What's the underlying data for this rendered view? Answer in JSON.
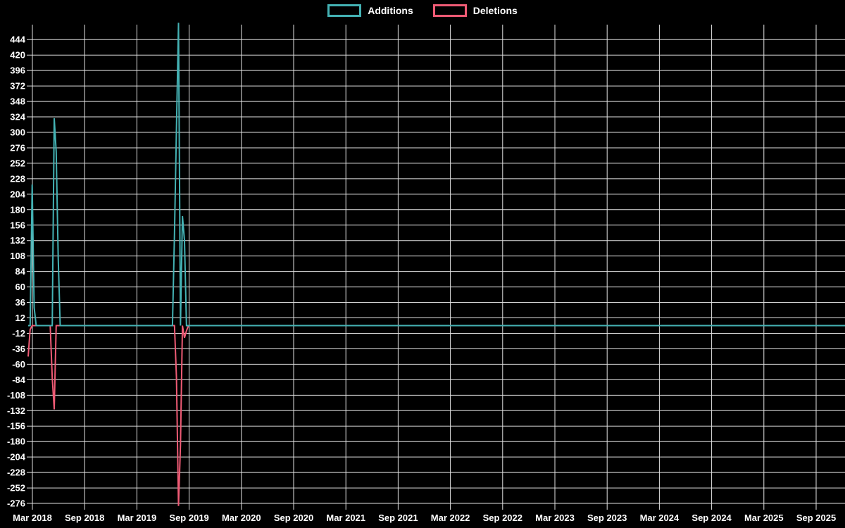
{
  "chart_data": {
    "type": "line",
    "title": "",
    "grid": true,
    "background_color": "#000000",
    "gridline_color": "#e2e2e2",
    "label_color": "#ffffff",
    "legend_position": "top-center",
    "x_axis": {
      "labels": [
        "Mar 2018",
        "Sep 2018",
        "Mar 2019",
        "Sep 2019",
        "Mar 2020",
        "Sep 2020",
        "Mar 2021",
        "Sep 2021",
        "Mar 2022",
        "Sep 2022",
        "Mar 2023",
        "Sep 2023",
        "Mar 2024",
        "Sep 2024",
        "Mar 2025",
        "Sep 2025"
      ],
      "tick_interval": "6 months",
      "range_start": "Mar 2018",
      "range_end": "Sep 2025"
    },
    "y_axis": {
      "min": -276,
      "max": 444,
      "step": 24,
      "ticks": [
        444,
        420,
        396,
        372,
        348,
        324,
        300,
        276,
        252,
        228,
        204,
        180,
        156,
        132,
        108,
        84,
        60,
        36,
        12,
        -12,
        -36,
        -60,
        -84,
        -108,
        -132,
        -156,
        -180,
        -204,
        -228,
        -252,
        -276
      ]
    },
    "x_unit": "week index from chart start (chart starts ~Mar 2018; ~26 weeks per 6-month tick)",
    "series": [
      {
        "name": "Additions",
        "color": "#44b2b4",
        "points": [
          [
            0,
            0
          ],
          [
            1,
            0
          ],
          [
            2,
            219
          ],
          [
            3,
            28
          ],
          [
            4,
            0
          ],
          [
            12,
            0
          ],
          [
            13,
            322
          ],
          [
            14,
            270
          ],
          [
            15,
            104
          ],
          [
            16,
            0
          ],
          [
            72,
            0
          ],
          [
            73,
            143
          ],
          [
            74,
            307
          ],
          [
            75,
            470
          ],
          [
            76,
            0
          ],
          [
            77,
            170
          ],
          [
            78,
            132
          ],
          [
            79,
            0
          ],
          [
            408,
            0
          ]
        ]
      },
      {
        "name": "Deletions",
        "color": "#ef5b75",
        "points": [
          [
            0,
            -48
          ],
          [
            1,
            -6
          ],
          [
            2,
            0
          ],
          [
            11,
            0
          ],
          [
            12,
            -81
          ],
          [
            13,
            -130
          ],
          [
            14,
            0
          ],
          [
            73,
            0
          ],
          [
            74,
            -81
          ],
          [
            75,
            -280
          ],
          [
            76,
            -185
          ],
          [
            77,
            0
          ],
          [
            78,
            -19
          ],
          [
            79,
            -8
          ],
          [
            80,
            0
          ],
          [
            408,
            0
          ]
        ]
      }
    ]
  }
}
